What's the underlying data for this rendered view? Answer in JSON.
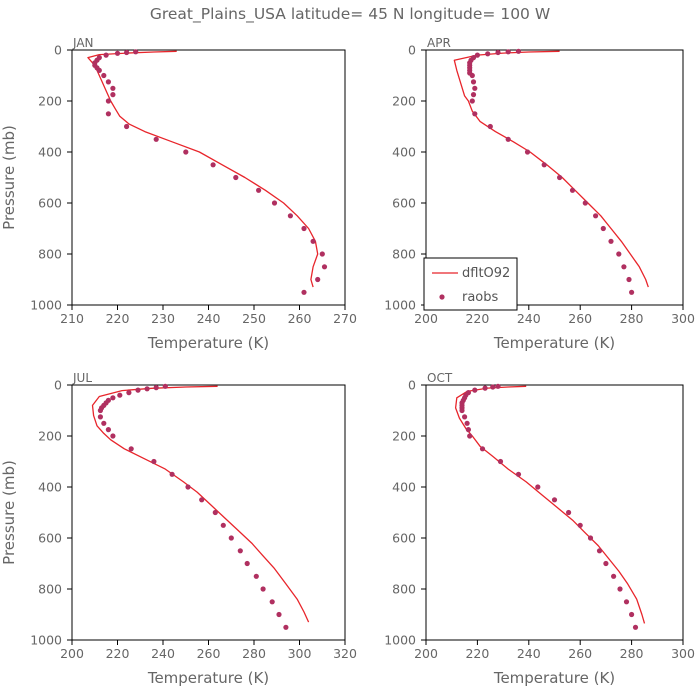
{
  "title": "Great_Plains_USA   latitude= 45 N longitude= 100 W",
  "colors": {
    "model": "#e8252b",
    "obs": "#b03060",
    "axis": "#000000",
    "text": "#666666"
  },
  "legend": {
    "model_label": "dfltO92",
    "obs_label": "raobs"
  },
  "chart_data": [
    {
      "type": "line",
      "panel": "JAN",
      "xlabel": "Temperature (K)",
      "ylabel": "Pressure (mb)",
      "xlim": [
        210,
        270
      ],
      "xticks": [
        210,
        220,
        230,
        240,
        250,
        260,
        270
      ],
      "ylim": [
        1000,
        0
      ],
      "yticks": [
        0,
        200,
        400,
        600,
        800,
        1000
      ],
      "show_legend": false,
      "series": [
        {
          "name": "dfltO92",
          "kind": "line",
          "points": [
            [
              233,
              5
            ],
            [
              228,
              8
            ],
            [
              222,
              12
            ],
            [
              216,
              18
            ],
            [
              213.5,
              30
            ],
            [
              214.5,
              50
            ],
            [
              215.5,
              80
            ],
            [
              216.5,
              120
            ],
            [
              217.5,
              160
            ],
            [
              218.5,
              200
            ],
            [
              219.5,
              230
            ],
            [
              220.5,
              260
            ],
            [
              222.5,
              290
            ],
            [
              226,
              320
            ],
            [
              232,
              360
            ],
            [
              238,
              400
            ],
            [
              243,
              450
            ],
            [
              248,
              500
            ],
            [
              252.5,
              550
            ],
            [
              256.5,
              600
            ],
            [
              259.5,
              650
            ],
            [
              262,
              700
            ],
            [
              263.5,
              750
            ],
            [
              264,
              800
            ],
            [
              263,
              850
            ],
            [
              262.5,
              900
            ],
            [
              263,
              930
            ]
          ]
        },
        {
          "name": "raobs",
          "kind": "scatter",
          "points": [
            [
              224,
              7
            ],
            [
              222,
              10
            ],
            [
              220,
              13
            ],
            [
              217.5,
              20
            ],
            [
              216,
              30
            ],
            [
              215.5,
              40
            ],
            [
              215,
              50
            ],
            [
              215,
              60
            ],
            [
              215.5,
              70
            ],
            [
              216,
              80
            ],
            [
              217,
              100
            ],
            [
              218,
              125
            ],
            [
              219,
              150
            ],
            [
              219,
              175
            ],
            [
              218,
              200
            ],
            [
              218,
              250
            ],
            [
              222,
              300
            ],
            [
              228.5,
              350
            ],
            [
              235,
              400
            ],
            [
              241,
              450
            ],
            [
              246,
              500
            ],
            [
              251,
              550
            ],
            [
              254.5,
              600
            ],
            [
              258,
              650
            ],
            [
              261,
              700
            ],
            [
              263,
              750
            ],
            [
              265,
              800
            ],
            [
              265.5,
              850
            ],
            [
              264,
              900
            ],
            [
              261,
              950
            ]
          ]
        }
      ]
    },
    {
      "type": "line",
      "panel": "APR",
      "xlabel": "Temperature (K)",
      "ylabel": "",
      "xlim": [
        200,
        300
      ],
      "xticks": [
        200,
        220,
        240,
        260,
        280,
        300
      ],
      "ylim": [
        1000,
        0
      ],
      "yticks": [
        0,
        200,
        400,
        600,
        800,
        1000
      ],
      "show_legend": true,
      "legend_position": "bottom-left",
      "series": [
        {
          "name": "dfltO92",
          "kind": "line",
          "points": [
            [
              252,
              5
            ],
            [
              240,
              8
            ],
            [
              230,
              12
            ],
            [
              220,
              20
            ],
            [
              211,
              40
            ],
            [
              212,
              80
            ],
            [
              213.5,
              130
            ],
            [
              215,
              180
            ],
            [
              216.5,
              200
            ],
            [
              218,
              240
            ],
            [
              221,
              280
            ],
            [
              227,
              320
            ],
            [
              234,
              360
            ],
            [
              240.5,
              400
            ],
            [
              247,
              450
            ],
            [
              253,
              500
            ],
            [
              258,
              550
            ],
            [
              263,
              600
            ],
            [
              268,
              650
            ],
            [
              272,
              700
            ],
            [
              276,
              750
            ],
            [
              279.5,
              800
            ],
            [
              283,
              850
            ],
            [
              285.5,
              900
            ],
            [
              286.5,
              930
            ]
          ]
        },
        {
          "name": "raobs",
          "kind": "scatter",
          "points": [
            [
              236,
              5
            ],
            [
              232,
              7
            ],
            [
              228,
              10
            ],
            [
              224,
              15
            ],
            [
              220,
              20
            ],
            [
              218.5,
              30
            ],
            [
              217.5,
              40
            ],
            [
              217,
              50
            ],
            [
              217,
              60
            ],
            [
              217,
              70
            ],
            [
              217,
              80
            ],
            [
              217,
              90
            ],
            [
              218,
              100
            ],
            [
              218.5,
              125
            ],
            [
              219,
              150
            ],
            [
              218.5,
              175
            ],
            [
              218,
              200
            ],
            [
              219,
              250
            ],
            [
              225,
              300
            ],
            [
              232,
              350
            ],
            [
              239.5,
              400
            ],
            [
              246,
              450
            ],
            [
              252,
              500
            ],
            [
              257,
              550
            ],
            [
              262,
              600
            ],
            [
              266,
              650
            ],
            [
              269,
              700
            ],
            [
              272,
              750
            ],
            [
              275,
              800
            ],
            [
              277,
              850
            ],
            [
              279,
              900
            ],
            [
              280,
              950
            ]
          ]
        }
      ]
    },
    {
      "type": "line",
      "panel": "JUL",
      "xlabel": "Temperature (K)",
      "ylabel": "Pressure (mb)",
      "xlim": [
        200,
        320
      ],
      "xticks": [
        200,
        220,
        240,
        260,
        280,
        300,
        320
      ],
      "ylim": [
        1000,
        0
      ],
      "yticks": [
        0,
        200,
        400,
        600,
        800,
        1000
      ],
      "show_legend": false,
      "series": [
        {
          "name": "dfltO92",
          "kind": "line",
          "points": [
            [
              264,
              5
            ],
            [
              250,
              8
            ],
            [
              235,
              13
            ],
            [
              222,
              22
            ],
            [
              212,
              45
            ],
            [
              209,
              80
            ],
            [
              209.5,
              120
            ],
            [
              211,
              160
            ],
            [
              214,
              190
            ],
            [
              217,
              215
            ],
            [
              223,
              250
            ],
            [
              232,
              290
            ],
            [
              241,
              330
            ],
            [
              249,
              380
            ],
            [
              255,
              420
            ],
            [
              261,
              470
            ],
            [
              267,
              520
            ],
            [
              273,
              570
            ],
            [
              279,
              620
            ],
            [
              284,
              670
            ],
            [
              289,
              720
            ],
            [
              294,
              780
            ],
            [
              299,
              840
            ],
            [
              302,
              890
            ],
            [
              304,
              930
            ]
          ]
        },
        {
          "name": "raobs",
          "kind": "scatter",
          "points": [
            [
              241,
              5
            ],
            [
              237,
              10
            ],
            [
              233,
              15
            ],
            [
              229,
              20
            ],
            [
              225,
              30
            ],
            [
              221,
              40
            ],
            [
              218,
              50
            ],
            [
              216,
              60
            ],
            [
              215,
              70
            ],
            [
              214,
              80
            ],
            [
              213,
              90
            ],
            [
              212.5,
              100
            ],
            [
              212.5,
              125
            ],
            [
              214,
              150
            ],
            [
              216,
              175
            ],
            [
              218,
              200
            ],
            [
              226,
              250
            ],
            [
              236,
              300
            ],
            [
              244,
              350
            ],
            [
              251,
              400
            ],
            [
              257,
              450
            ],
            [
              263,
              500
            ],
            [
              266.5,
              550
            ],
            [
              270,
              600
            ],
            [
              274,
              650
            ],
            [
              277,
              700
            ],
            [
              281,
              750
            ],
            [
              284,
              800
            ],
            [
              288,
              850
            ],
            [
              291,
              900
            ],
            [
              294,
              950
            ]
          ]
        }
      ]
    },
    {
      "type": "line",
      "panel": "OCT",
      "xlabel": "Temperature (K)",
      "ylabel": "",
      "xlim": [
        200,
        300
      ],
      "xticks": [
        200,
        220,
        240,
        260,
        280,
        300
      ],
      "ylim": [
        1000,
        0
      ],
      "yticks": [
        0,
        200,
        400,
        600,
        800,
        1000
      ],
      "show_legend": false,
      "series": [
        {
          "name": "dfltO92",
          "kind": "line",
          "points": [
            [
              239,
              5
            ],
            [
              232,
              8
            ],
            [
              224,
              12
            ],
            [
              216,
              25
            ],
            [
              212,
              50
            ],
            [
              211.5,
              90
            ],
            [
              213,
              130
            ],
            [
              215.5,
              170
            ],
            [
              218,
              200
            ],
            [
              221,
              240
            ],
            [
              226,
              280
            ],
            [
              232,
              330
            ],
            [
              239,
              380
            ],
            [
              245,
              430
            ],
            [
              251,
              480
            ],
            [
              257,
              530
            ],
            [
              262,
              580
            ],
            [
              267,
              630
            ],
            [
              271,
              680
            ],
            [
              275,
              730
            ],
            [
              278.5,
              780
            ],
            [
              282,
              840
            ],
            [
              284,
              900
            ],
            [
              285,
              935
            ]
          ]
        },
        {
          "name": "raobs",
          "kind": "scatter",
          "points": [
            [
              228,
              5
            ],
            [
              226,
              8
            ],
            [
              223,
              12
            ],
            [
              219,
              20
            ],
            [
              216.5,
              30
            ],
            [
              215.5,
              40
            ],
            [
              215,
              50
            ],
            [
              214.5,
              60
            ],
            [
              214,
              70
            ],
            [
              214,
              80
            ],
            [
              214,
              90
            ],
            [
              214,
              100
            ],
            [
              215,
              125
            ],
            [
              216,
              150
            ],
            [
              216.5,
              175
            ],
            [
              217,
              200
            ],
            [
              222,
              250
            ],
            [
              229,
              300
            ],
            [
              236,
              350
            ],
            [
              243.5,
              400
            ],
            [
              250,
              450
            ],
            [
              255.5,
              500
            ],
            [
              260,
              550
            ],
            [
              264,
              600
            ],
            [
              267.5,
              650
            ],
            [
              270,
              700
            ],
            [
              273,
              750
            ],
            [
              275.5,
              800
            ],
            [
              278,
              850
            ],
            [
              280,
              900
            ],
            [
              281.5,
              950
            ]
          ]
        }
      ]
    }
  ]
}
